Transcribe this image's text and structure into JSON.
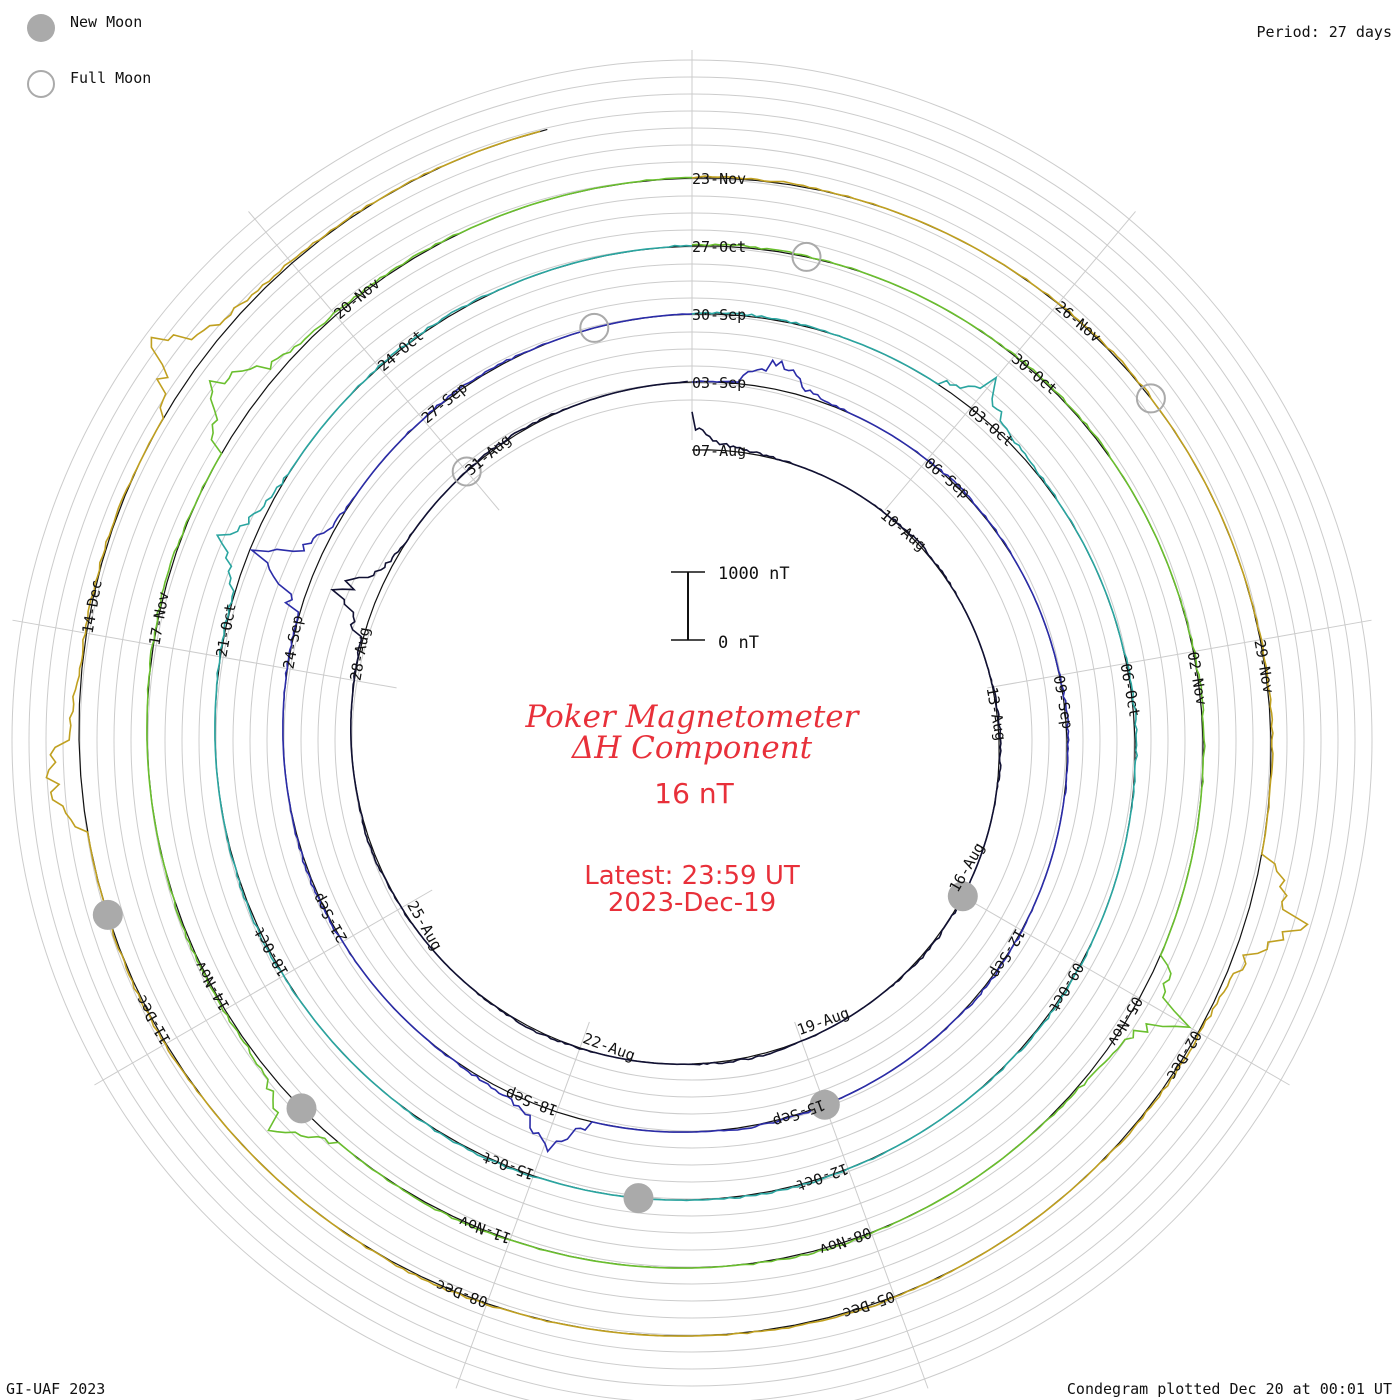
{
  "legend": {
    "new_moon_label": "New Moon",
    "full_moon_label": "Full Moon",
    "new_moon_color": "#aaaaaa",
    "full_moon_color": "#aaaaaa"
  },
  "period_text": "Period: 27 days",
  "credit_text": "GI-UAF 2023",
  "plotted_text": "Condegram plotted Dec 20 at 00:01 UT",
  "chart_data": {
    "type": "line",
    "title": "Poker Magnetometer",
    "subtitle": "ΔH Component",
    "current_value": "16 nT",
    "latest_line_1": "Latest: 23:59 UT",
    "latest_line_2": "2023-Dec-19",
    "scale_bar": {
      "top_label": "1000 nT",
      "bottom_label": "0 nT",
      "value_range": [
        0,
        1000
      ]
    },
    "period_days": 27,
    "direction": "clockwise",
    "title_color": "#e8303a",
    "cycles": [
      {
        "start": "2023-08-07",
        "color": "#111133",
        "labels": [
          "07-Aug",
          "10-Aug",
          "13-Aug",
          "16-Aug",
          "19-Aug",
          "22-Aug",
          "25-Aug",
          "28-Aug",
          "31-Aug"
        ]
      },
      {
        "start": "2023-09-03",
        "color": "#2b2ca8",
        "labels": [
          "03-Sep",
          "06-Sep",
          "09-Sep",
          "12-Sep",
          "15-Sep",
          "18-Sep",
          "21-Sep",
          "24-Sep",
          "27-Sep"
        ]
      },
      {
        "start": "2023-09-30",
        "color": "#2aa5a0",
        "labels": [
          "30-Sep",
          "03-Oct",
          "06-Oct",
          "09-Oct",
          "12-Oct",
          "15-Oct",
          "18-Oct",
          "21-Oct",
          "24-Oct"
        ]
      },
      {
        "start": "2023-10-27",
        "color": "#6abf2e",
        "labels": [
          "27-Oct",
          "30-Oct",
          "02-Nov",
          "05-Nov",
          "08-Nov",
          "11-Nov",
          "14-Nov",
          "17-Nov",
          "20-Nov"
        ]
      },
      {
        "start": "2023-11-23",
        "color": "#c0a020",
        "labels": [
          "23-Nov",
          "26-Nov",
          "29-Nov",
          "02-Dec",
          "05-Dec",
          "08-Dec",
          "11-Dec",
          "14-Dec"
        ]
      }
    ],
    "series_profile": {
      "baseline_nT": 0,
      "notable_disturbances_nT": [
        {
          "date": "2023-08-07",
          "value": 500
        },
        {
          "date": "2023-08-29",
          "value": 700
        },
        {
          "date": "2023-09-04",
          "value": 550
        },
        {
          "date": "2023-09-18",
          "value": 650
        },
        {
          "date": "2023-09-25",
          "value": 800
        },
        {
          "date": "2023-10-03",
          "value": 500
        },
        {
          "date": "2023-10-22",
          "value": 450
        },
        {
          "date": "2023-11-05",
          "value": 700
        },
        {
          "date": "2023-11-13",
          "value": 600
        },
        {
          "date": "2023-11-19",
          "value": 900
        },
        {
          "date": "2023-12-01",
          "value": 1000
        },
        {
          "date": "2023-12-13",
          "value": 700
        },
        {
          "date": "2023-12-16",
          "value": 800
        }
      ]
    },
    "new_moons": [
      "2023-08-16",
      "2023-09-15",
      "2023-10-14",
      "2023-11-13",
      "2023-12-12"
    ],
    "full_moons": [
      "2023-08-31",
      "2023-09-29",
      "2023-10-28",
      "2023-11-27"
    ]
  }
}
